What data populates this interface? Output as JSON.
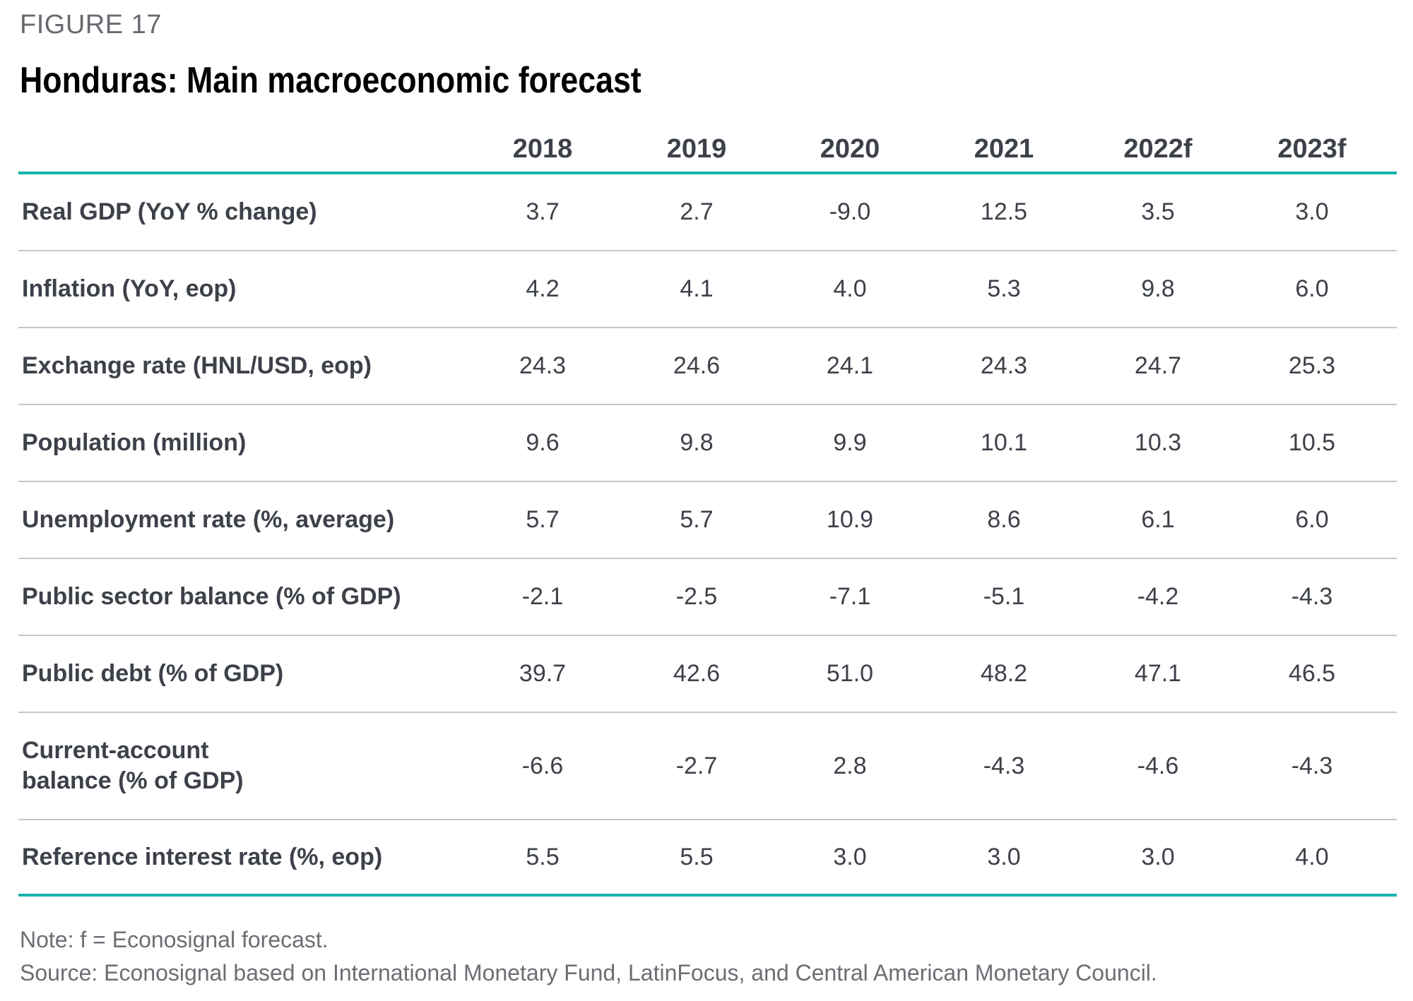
{
  "figure_label": "FIGURE 17",
  "title": "Honduras: Main macroeconomic forecast",
  "colors": {
    "accent": "#17b3ab",
    "text": "#3d4149",
    "divider": "#c6c6c6"
  },
  "table": {
    "columns": [
      "2018",
      "2019",
      "2020",
      "2021",
      "2022f",
      "2023f"
    ],
    "rows": [
      {
        "label": "Real GDP (YoY % change)",
        "values": [
          "3.7",
          "2.7",
          "-9.0",
          "12.5",
          "3.5",
          "3.0"
        ]
      },
      {
        "label": "Inflation (YoY, eop)",
        "values": [
          "4.2",
          "4.1",
          "4.0",
          "5.3",
          "9.8",
          "6.0"
        ]
      },
      {
        "label": "Exchange rate (HNL/USD, eop)",
        "values": [
          "24.3",
          "24.6",
          "24.1",
          "24.3",
          "24.7",
          "25.3"
        ]
      },
      {
        "label": "Population (million)",
        "values": [
          "9.6",
          "9.8",
          "9.9",
          "10.1",
          "10.3",
          "10.5"
        ]
      },
      {
        "label": "Unemployment rate (%, average)",
        "values": [
          "5.7",
          "5.7",
          "10.9",
          "8.6",
          "6.1",
          "6.0"
        ]
      },
      {
        "label": "Public sector balance (% of GDP)",
        "values": [
          "-2.1",
          "-2.5",
          "-7.1",
          "-5.1",
          "-4.2",
          "-4.3"
        ]
      },
      {
        "label": "Public debt (% of GDP)",
        "values": [
          "39.7",
          "42.6",
          "51.0",
          "48.2",
          "47.1",
          "46.5"
        ]
      },
      {
        "label_lines": [
          "Current-account",
          "balance (% of GDP)"
        ],
        "values": [
          "-6.6",
          "-2.7",
          "2.8",
          "-4.3",
          "-4.6",
          "-4.3"
        ]
      },
      {
        "label": "Reference interest rate (%, eop)",
        "values": [
          "5.5",
          "5.5",
          "3.0",
          "3.0",
          "3.0",
          "4.0"
        ]
      }
    ]
  },
  "note": "Note: f = Econosignal forecast.",
  "source": "Source: Econosignal based on International Monetary Fund, LatinFocus, and Central American Monetary Council."
}
